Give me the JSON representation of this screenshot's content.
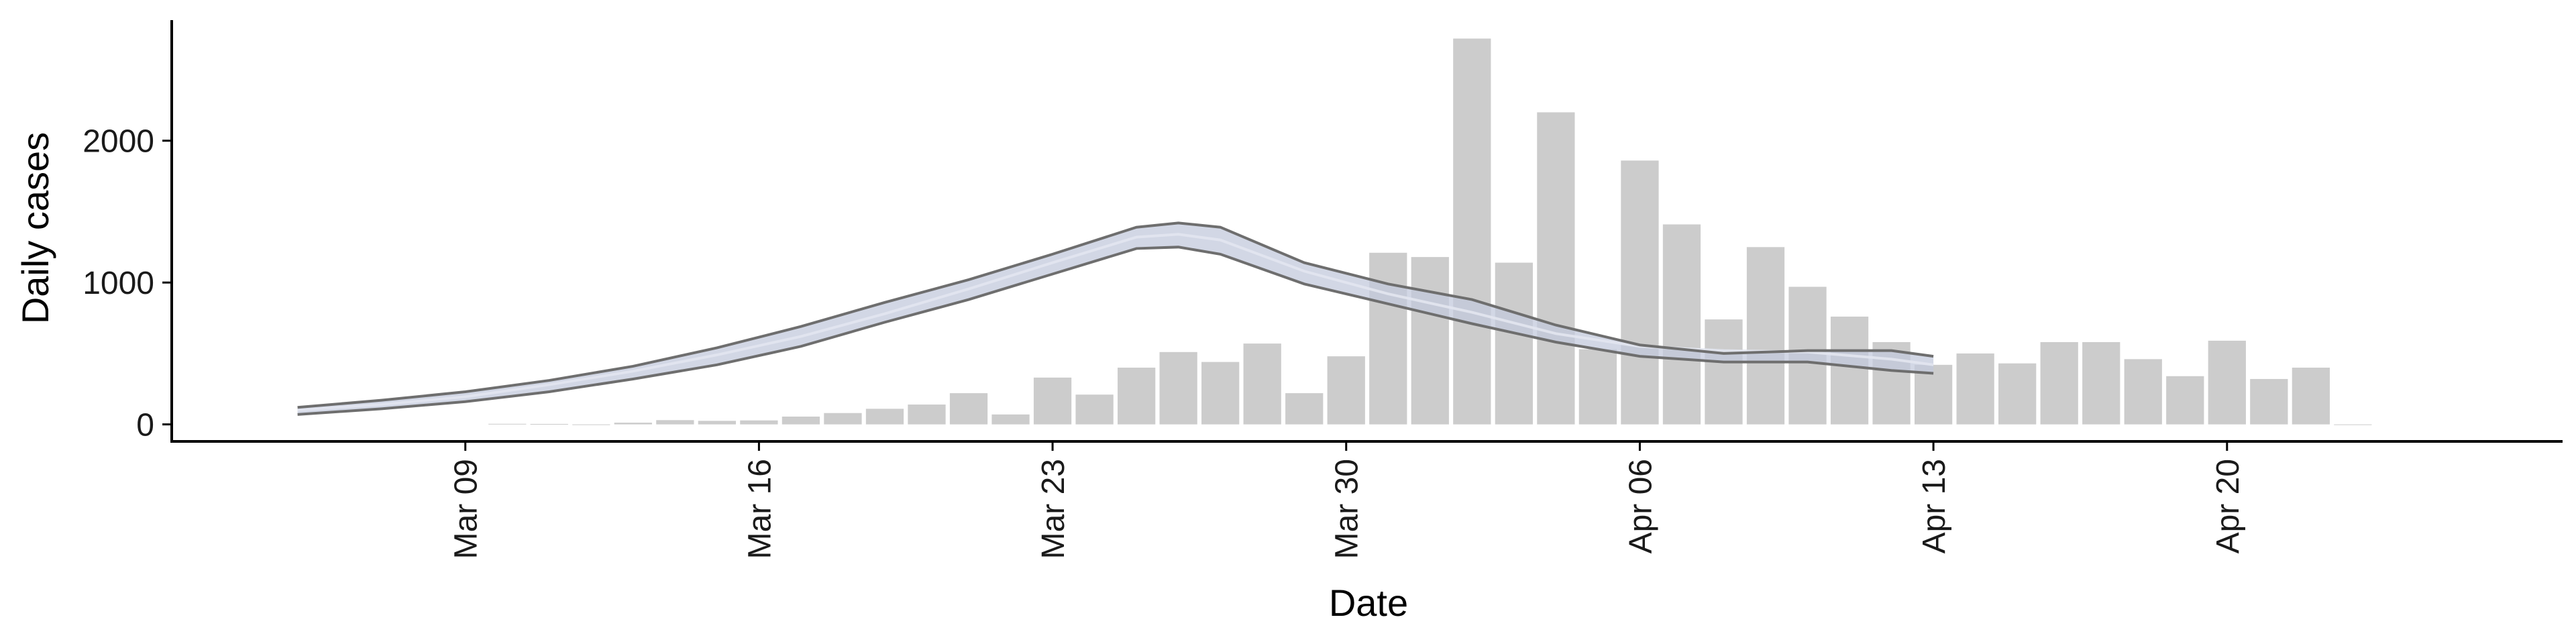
{
  "chart_data": {
    "type": "bar",
    "xlabel": "Date",
    "ylabel": "Daily cases",
    "xlim": [
      "2020-03-02",
      "2020-04-28"
    ],
    "ylim": [
      -120,
      2850
    ],
    "x_ticks": [
      {
        "date": "2020-03-09",
        "label": "Mar 09"
      },
      {
        "date": "2020-03-16",
        "label": "Mar 16"
      },
      {
        "date": "2020-03-23",
        "label": "Mar 23"
      },
      {
        "date": "2020-03-30",
        "label": "Mar 30"
      },
      {
        "date": "2020-04-06",
        "label": "Apr 06"
      },
      {
        "date": "2020-04-13",
        "label": "Apr 13"
      },
      {
        "date": "2020-04-20",
        "label": "Apr 20"
      }
    ],
    "y_ticks": [
      {
        "value": 0,
        "label": "0"
      },
      {
        "value": 1000,
        "label": "1000"
      },
      {
        "value": 2000,
        "label": "2000"
      }
    ],
    "grid": false,
    "colors": {
      "bars": "#cccccc",
      "band": "#c3c9dc",
      "bounds": "#6e6e6e",
      "axis": "#000000"
    },
    "bars": {
      "dates": [
        "2020-03-10",
        "2020-03-11",
        "2020-03-12",
        "2020-03-13",
        "2020-03-14",
        "2020-03-15",
        "2020-03-16",
        "2020-03-17",
        "2020-03-18",
        "2020-03-19",
        "2020-03-20",
        "2020-03-21",
        "2020-03-22",
        "2020-03-23",
        "2020-03-24",
        "2020-03-25",
        "2020-03-26",
        "2020-03-27",
        "2020-03-28",
        "2020-03-29",
        "2020-03-30",
        "2020-03-31",
        "2020-04-01",
        "2020-04-02",
        "2020-04-03",
        "2020-04-04",
        "2020-04-05",
        "2020-04-06",
        "2020-04-07",
        "2020-04-08",
        "2020-04-09",
        "2020-04-10",
        "2020-04-11",
        "2020-04-12",
        "2020-04-13",
        "2020-04-14",
        "2020-04-15",
        "2020-04-16",
        "2020-04-17",
        "2020-04-18",
        "2020-04-19",
        "2020-04-20",
        "2020-04-21",
        "2020-04-22",
        "2020-04-23"
      ],
      "values": [
        4,
        3,
        0,
        12,
        30,
        25,
        28,
        55,
        80,
        110,
        140,
        220,
        70,
        330,
        210,
        400,
        510,
        440,
        570,
        220,
        480,
        1210,
        1180,
        2720,
        1140,
        2200,
        530,
        1860,
        1410,
        740,
        1250,
        970,
        760,
        580,
        420,
        500,
        430,
        580,
        580,
        460,
        340,
        590,
        320,
        400,
        0
      ]
    },
    "estimate": {
      "dates": [
        "2020-03-05",
        "2020-03-07",
        "2020-03-09",
        "2020-03-11",
        "2020-03-13",
        "2020-03-15",
        "2020-03-17",
        "2020-03-19",
        "2020-03-21",
        "2020-03-23",
        "2020-03-25",
        "2020-03-26",
        "2020-03-27",
        "2020-03-29",
        "2020-03-31",
        "2020-04-02",
        "2020-04-04",
        "2020-04-06",
        "2020-04-08",
        "2020-04-10",
        "2020-04-12",
        "2020-04-13"
      ],
      "median": [
        100,
        140,
        195,
        280,
        375,
        490,
        620,
        780,
        955,
        1140,
        1320,
        1340,
        1300,
        1080,
        920,
        790,
        640,
        550,
        520,
        510,
        460,
        420
      ],
      "lower": [
        70,
        110,
        160,
        230,
        320,
        420,
        550,
        720,
        880,
        1060,
        1240,
        1250,
        1200,
        990,
        850,
        710,
        580,
        480,
        440,
        440,
        380,
        360
      ],
      "upper": [
        120,
        170,
        230,
        310,
        410,
        540,
        690,
        860,
        1020,
        1200,
        1390,
        1420,
        1390,
        1140,
        990,
        880,
        700,
        560,
        500,
        520,
        520,
        480
      ]
    }
  }
}
